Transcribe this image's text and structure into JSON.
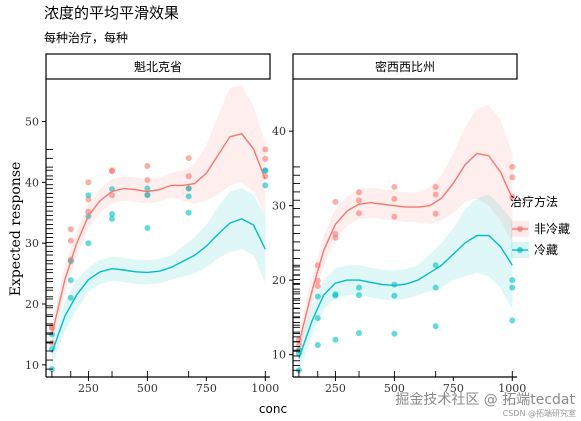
{
  "title": "浓度的平均平滑效果",
  "subtitle": "每种治疗，每种",
  "watermark": "掘金技术社区 @ 拓端tecdat",
  "watermark_small": "CSDN @拓端研究室",
  "legend": {
    "title": "治疗方法",
    "items": [
      {
        "label": "非冷藏",
        "color": "#F8766D"
      },
      {
        "label": "冷藏",
        "color": "#00BFC4"
      }
    ]
  },
  "chart_data": [
    {
      "type": "scatter",
      "panel": "魁北克省",
      "xlabel": "conc",
      "ylabel": "Expected response",
      "xlim": [
        70,
        1020
      ],
      "ylim": [
        8,
        57
      ],
      "xticks": [
        250,
        500,
        750,
        1000
      ],
      "yticks": [
        10,
        20,
        30,
        40,
        50
      ],
      "series": [
        {
          "name": "非冷藏",
          "color": "#F8766D",
          "points": [
            [
              95,
              16.0
            ],
            [
              95,
              13.6
            ],
            [
              95,
              16.2
            ],
            [
              175,
              30.4
            ],
            [
              175,
              32.3
            ],
            [
              175,
              27.3
            ],
            [
              250,
              35.2
            ],
            [
              250,
              37.2
            ],
            [
              250,
              40.0
            ],
            [
              350,
              37.9
            ],
            [
              350,
              41.8
            ],
            [
              350,
              42.0
            ],
            [
              500,
              38.0
            ],
            [
              500,
              40.4
            ],
            [
              500,
              42.7
            ],
            [
              675,
              39.0
            ],
            [
              675,
              41.0
            ],
            [
              675,
              44.0
            ],
            [
              1000,
              41.0
            ],
            [
              1000,
              43.9
            ],
            [
              1000,
              45.4
            ]
          ],
          "smooth": {
            "x": [
              95,
              150,
              200,
              250,
              300,
              350,
              400,
              450,
              500,
              550,
              600,
              650,
              700,
              750,
              800,
              850,
              900,
              950,
              1000
            ],
            "y": [
              15.0,
              24.0,
              30.0,
              34.5,
              37.0,
              38.5,
              39.0,
              38.8,
              38.5,
              38.8,
              39.5,
              39.5,
              39.8,
              41.5,
              44.5,
              47.5,
              48.0,
              45.5,
              40.5
            ],
            "upper": [
              16.5,
              26.5,
              32.0,
              36.5,
              39.0,
              40.5,
              41.0,
              40.8,
              40.5,
              40.8,
              41.5,
              42.0,
              43.0,
              46.0,
              51.0,
              55.5,
              56.0,
              52.5,
              46.5
            ],
            "lower": [
              13.5,
              21.5,
              28.0,
              32.5,
              35.0,
              36.5,
              37.0,
              36.8,
              36.5,
              36.8,
              37.5,
              37.0,
              36.5,
              37.0,
              38.0,
              39.5,
              40.0,
              38.5,
              34.5
            ]
          }
        },
        {
          "name": "冷藏",
          "color": "#00BFC4",
          "points": [
            [
              95,
              9.3
            ],
            [
              95,
              15.0
            ],
            [
              95,
              12.6
            ],
            [
              175,
              21.0
            ],
            [
              175,
              23.9
            ],
            [
              175,
              27.0
            ],
            [
              250,
              30.0
            ],
            [
              250,
              34.4
            ],
            [
              250,
              37.9
            ],
            [
              350,
              34.0
            ],
            [
              350,
              34.8
            ],
            [
              350,
              38.9
            ],
            [
              500,
              32.5
            ],
            [
              500,
              37.9
            ],
            [
              500,
              39.0
            ],
            [
              675,
              35.0
            ],
            [
              675,
              37.7
            ],
            [
              675,
              39.0
            ],
            [
              1000,
              39.5
            ],
            [
              1000,
              41.9
            ],
            [
              1000,
              42.0
            ]
          ],
          "smooth": {
            "x": [
              95,
              150,
              200,
              250,
              300,
              350,
              400,
              450,
              500,
              550,
              600,
              650,
              700,
              750,
              800,
              850,
              900,
              950,
              1000
            ],
            "y": [
              12.0,
              18.0,
              21.5,
              24.0,
              25.3,
              25.8,
              25.6,
              25.3,
              25.2,
              25.4,
              26.0,
              27.0,
              28.0,
              29.5,
              31.5,
              33.3,
              34.0,
              33.0,
              29.0
            ],
            "upper": [
              14.0,
              20.5,
              24.0,
              26.0,
              27.3,
              27.8,
              27.6,
              27.3,
              27.2,
              27.4,
              28.0,
              29.5,
              31.0,
              33.0,
              36.0,
              38.5,
              39.0,
              38.0,
              34.5
            ],
            "lower": [
              10.0,
              15.5,
              19.0,
              22.0,
              23.3,
              23.8,
              23.6,
              23.3,
              23.2,
              23.4,
              24.0,
              24.5,
              25.0,
              26.0,
              27.5,
              28.5,
              29.0,
              28.0,
              23.5
            ]
          }
        }
      ]
    },
    {
      "type": "scatter",
      "panel": "密西西比州",
      "xlabel": "conc",
      "ylabel": "Expected response",
      "xlim": [
        70,
        1020
      ],
      "ylim": [
        7,
        47
      ],
      "xticks": [
        250,
        500,
        750,
        1000
      ],
      "yticks": [
        10,
        20,
        30,
        40
      ],
      "series": [
        {
          "name": "非冷藏",
          "color": "#F8766D",
          "points": [
            [
              95,
              10.6
            ],
            [
              95,
              12.0
            ],
            [
              95,
              11.3
            ],
            [
              175,
              19.2
            ],
            [
              175,
              19.9
            ],
            [
              175,
              22.0
            ],
            [
              250,
              25.7
            ],
            [
              250,
              26.2
            ],
            [
              250,
              30.5
            ],
            [
              350,
              29.0
            ],
            [
              350,
              30.7
            ],
            [
              350,
              31.8
            ],
            [
              500,
              28.5
            ],
            [
              500,
              30.9
            ],
            [
              500,
              32.5
            ],
            [
              675,
              28.9
            ],
            [
              675,
              31.5
            ],
            [
              675,
              32.5
            ],
            [
              1000,
              31.2
            ],
            [
              1000,
              33.8
            ],
            [
              1000,
              35.2
            ]
          ],
          "smooth": {
            "x": [
              95,
              150,
              200,
              250,
              300,
              350,
              400,
              450,
              500,
              550,
              600,
              650,
              700,
              750,
              800,
              850,
              900,
              950,
              1000
            ],
            "y": [
              11.5,
              18.5,
              24.0,
              27.5,
              29.3,
              30.2,
              30.4,
              30.2,
              30.0,
              29.8,
              29.8,
              30.0,
              31.0,
              33.0,
              35.5,
              37.0,
              36.7,
              34.5,
              31.0
            ],
            "upper": [
              13.0,
              20.5,
              26.0,
              29.5,
              31.3,
              32.2,
              32.4,
              32.2,
              32.0,
              31.8,
              31.8,
              32.5,
              34.0,
              37.0,
              40.5,
              43.0,
              43.5,
              41.5,
              37.0
            ],
            "lower": [
              10.0,
              16.5,
              22.0,
              25.5,
              27.3,
              28.2,
              28.4,
              28.2,
              28.0,
              27.8,
              27.8,
              27.5,
              28.0,
              29.0,
              30.5,
              31.0,
              30.0,
              28.0,
              25.0
            ]
          }
        },
        {
          "name": "冷藏",
          "color": "#00BFC4",
          "points": [
            [
              95,
              7.9
            ],
            [
              95,
              10.2
            ],
            [
              95,
              10.6
            ],
            [
              175,
              11.3
            ],
            [
              175,
              14.9
            ],
            [
              175,
              17.8
            ],
            [
              250,
              12.0
            ],
            [
              250,
              17.9
            ],
            [
              250,
              18.1
            ],
            [
              350,
              12.9
            ],
            [
              350,
              18.0
            ],
            [
              350,
              19.0
            ],
            [
              500,
              12.8
            ],
            [
              500,
              17.9
            ],
            [
              500,
              19.4
            ],
            [
              675,
              13.8
            ],
            [
              675,
              19.0
            ],
            [
              675,
              22.0
            ],
            [
              1000,
              14.6
            ],
            [
              1000,
              19.0
            ],
            [
              1000,
              20.0
            ]
          ],
          "smooth": {
            "x": [
              95,
              150,
              200,
              250,
              300,
              350,
              400,
              450,
              500,
              550,
              600,
              650,
              700,
              750,
              800,
              850,
              900,
              950,
              1000
            ],
            "y": [
              9.5,
              14.5,
              18.0,
              19.6,
              20.0,
              20.0,
              19.7,
              19.4,
              19.3,
              19.5,
              20.0,
              21.0,
              22.0,
              23.5,
              25.0,
              26.0,
              26.0,
              24.5,
              22.0
            ],
            "upper": [
              11.5,
              16.5,
              20.0,
              21.6,
              22.0,
              22.0,
              21.7,
              21.4,
              21.3,
              21.5,
              22.0,
              23.5,
              25.0,
              27.0,
              29.5,
              31.0,
              31.5,
              30.0,
              28.0
            ],
            "lower": [
              7.5,
              12.5,
              16.0,
              17.6,
              18.0,
              18.0,
              17.7,
              17.4,
              17.3,
              17.5,
              18.0,
              18.5,
              19.0,
              20.0,
              20.5,
              21.0,
              20.5,
              19.0,
              16.0
            ]
          }
        }
      ]
    }
  ]
}
